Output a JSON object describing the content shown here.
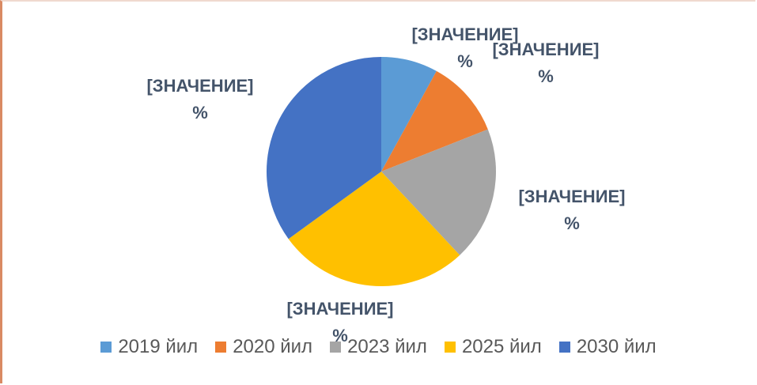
{
  "chart_data": {
    "type": "pie",
    "categories": [
      "2019 йил",
      "2020 йил",
      "2023 йил",
      "2025 йил",
      "2030 йил"
    ],
    "values": [
      8,
      11,
      19,
      27,
      35
    ],
    "value_labels": [
      "[ЗНАЧЕНИЕ]\n%",
      "[ЗНАЧЕНИЕ]\n%",
      "[ЗНАЧЕНИЕ]\n%",
      "[ЗНАЧЕНИЕ]\n%",
      "[ЗНАЧЕНИЕ]\n%"
    ],
    "colors": [
      "#5b9bd5",
      "#ed7d31",
      "#a5a5a5",
      "#ffc000",
      "#4472c4"
    ],
    "legend": "bottom"
  }
}
